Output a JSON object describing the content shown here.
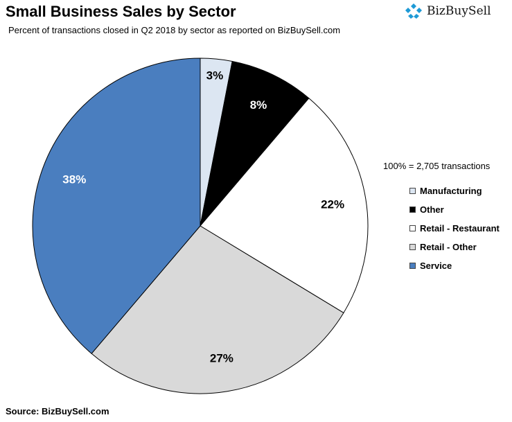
{
  "title": "Small Business Sales by Sector",
  "subtitle": "Percent of transactions closed in Q2 2018  by sector as reported on BizBuySell.com",
  "brand": {
    "name": "BizBuySell",
    "icon": "bizbuysell-logo-icon",
    "color": "#1e9ad6"
  },
  "total_note": "100% = 2,705 transactions",
  "source": "Source: BizBuySell.com",
  "chart_data": {
    "type": "pie",
    "title": "Small Business Sales by Sector",
    "subtitle": "Percent of transactions closed in Q2 2018  by sector as reported on BizBuySell.com",
    "legend_position": "right",
    "start": "top, clockwise",
    "slices": [
      {
        "label": "Manufacturing",
        "value": 3,
        "display": "3%",
        "color": "#dce6f2"
      },
      {
        "label": "Other",
        "value": 8,
        "display": "8%",
        "color": "#000000"
      },
      {
        "label": "Retail - Restaurant",
        "value": 22,
        "display": "22%",
        "color": "#ffffff"
      },
      {
        "label": "Retail - Other",
        "value": 27,
        "display": "27%",
        "color": "#d9d9d9"
      },
      {
        "label": "Service",
        "value": 38,
        "display": "38%",
        "color": "#4a7ebf"
      }
    ]
  }
}
